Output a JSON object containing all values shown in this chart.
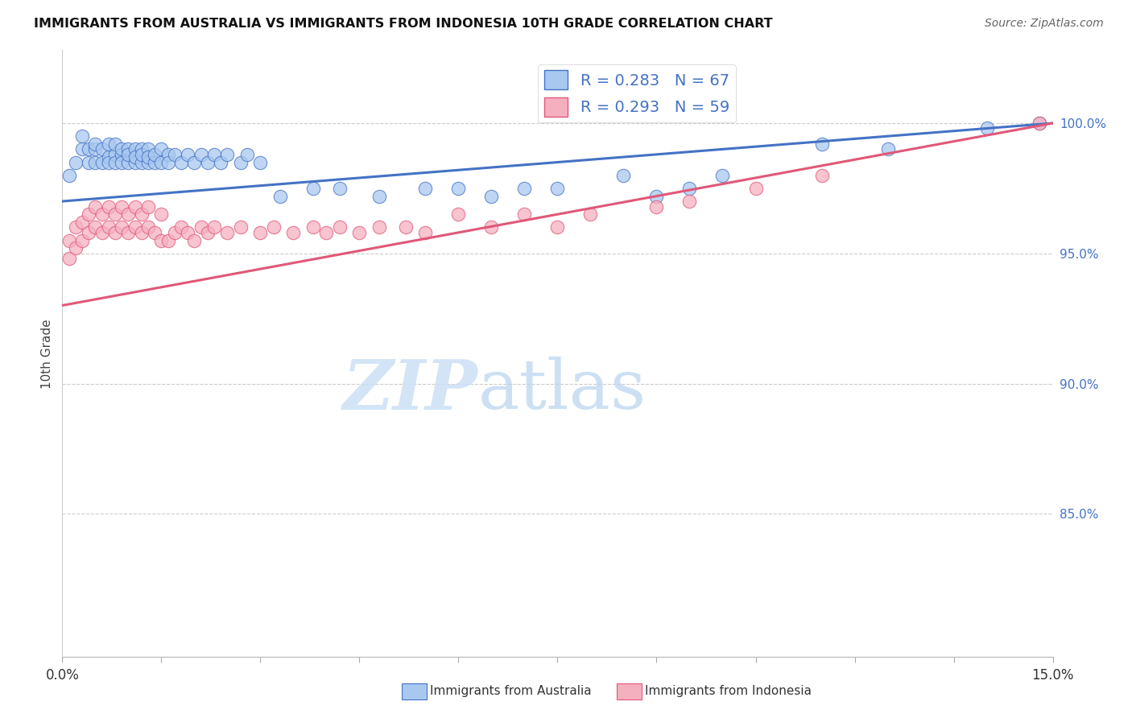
{
  "title": "IMMIGRANTS FROM AUSTRALIA VS IMMIGRANTS FROM INDONESIA 10TH GRADE CORRELATION CHART",
  "source": "Source: ZipAtlas.com",
  "ylabel": "10th Grade",
  "xmin": 0.0,
  "xmax": 0.15,
  "ymin": 0.795,
  "ymax": 1.028,
  "r_aus": 0.283,
  "n_aus": 67,
  "r_ind": 0.293,
  "n_ind": 59,
  "color_australia": "#a8c8f0",
  "color_indonesia": "#f5b0c0",
  "line_color_australia": "#4472c4",
  "line_color_indonesia": "#e05878",
  "watermark_text": "ZIPatlas",
  "legend_label_aus": "Immigrants from Australia",
  "legend_label_ind": "Immigrants from Indonesia",
  "yticks": [
    1.0,
    0.95,
    0.9,
    0.85
  ],
  "ytick_labels": [
    "100.0%",
    "95.0%",
    "90.0%",
    "85.0%"
  ],
  "aus_line_x0": 0.0,
  "aus_line_y0": 0.97,
  "aus_line_x1": 0.15,
  "aus_line_y1": 1.0,
  "ind_line_x0": 0.0,
  "ind_line_y0": 0.93,
  "ind_line_x1": 0.15,
  "ind_line_y1": 1.0,
  "australia_x": [
    0.001,
    0.002,
    0.003,
    0.003,
    0.004,
    0.004,
    0.005,
    0.005,
    0.005,
    0.006,
    0.006,
    0.007,
    0.007,
    0.007,
    0.008,
    0.008,
    0.008,
    0.009,
    0.009,
    0.009,
    0.01,
    0.01,
    0.01,
    0.011,
    0.011,
    0.011,
    0.012,
    0.012,
    0.012,
    0.013,
    0.013,
    0.013,
    0.014,
    0.014,
    0.015,
    0.015,
    0.016,
    0.016,
    0.017,
    0.018,
    0.019,
    0.02,
    0.021,
    0.022,
    0.023,
    0.024,
    0.025,
    0.027,
    0.028,
    0.03,
    0.033,
    0.038,
    0.042,
    0.048,
    0.055,
    0.06,
    0.065,
    0.07,
    0.075,
    0.085,
    0.09,
    0.095,
    0.1,
    0.115,
    0.125,
    0.14,
    0.148
  ],
  "australia_y": [
    0.98,
    0.985,
    0.99,
    0.995,
    0.985,
    0.99,
    0.99,
    0.992,
    0.985,
    0.985,
    0.99,
    0.987,
    0.992,
    0.985,
    0.988,
    0.992,
    0.985,
    0.988,
    0.99,
    0.985,
    0.985,
    0.99,
    0.988,
    0.985,
    0.99,
    0.987,
    0.985,
    0.99,
    0.988,
    0.985,
    0.99,
    0.987,
    0.985,
    0.988,
    0.985,
    0.99,
    0.988,
    0.985,
    0.988,
    0.985,
    0.988,
    0.985,
    0.988,
    0.985,
    0.988,
    0.985,
    0.988,
    0.985,
    0.988,
    0.985,
    0.972,
    0.975,
    0.975,
    0.972,
    0.975,
    0.975,
    0.972,
    0.975,
    0.975,
    0.98,
    0.972,
    0.975,
    0.98,
    0.992,
    0.99,
    0.998,
    1.0
  ],
  "indonesia_x": [
    0.001,
    0.001,
    0.002,
    0.002,
    0.003,
    0.003,
    0.004,
    0.004,
    0.005,
    0.005,
    0.006,
    0.006,
    0.007,
    0.007,
    0.008,
    0.008,
    0.009,
    0.009,
    0.01,
    0.01,
    0.011,
    0.011,
    0.012,
    0.012,
    0.013,
    0.013,
    0.014,
    0.015,
    0.015,
    0.016,
    0.017,
    0.018,
    0.019,
    0.02,
    0.021,
    0.022,
    0.023,
    0.025,
    0.027,
    0.03,
    0.032,
    0.035,
    0.038,
    0.04,
    0.042,
    0.045,
    0.048,
    0.052,
    0.055,
    0.06,
    0.065,
    0.07,
    0.075,
    0.08,
    0.09,
    0.095,
    0.105,
    0.115,
    0.148
  ],
  "indonesia_y": [
    0.948,
    0.955,
    0.952,
    0.96,
    0.955,
    0.962,
    0.958,
    0.965,
    0.96,
    0.968,
    0.958,
    0.965,
    0.96,
    0.968,
    0.958,
    0.965,
    0.96,
    0.968,
    0.958,
    0.965,
    0.96,
    0.968,
    0.958,
    0.965,
    0.96,
    0.968,
    0.958,
    0.955,
    0.965,
    0.955,
    0.958,
    0.96,
    0.958,
    0.955,
    0.96,
    0.958,
    0.96,
    0.958,
    0.96,
    0.958,
    0.96,
    0.958,
    0.96,
    0.958,
    0.96,
    0.958,
    0.96,
    0.96,
    0.958,
    0.965,
    0.96,
    0.965,
    0.96,
    0.965,
    0.968,
    0.97,
    0.975,
    0.98,
    1.0
  ]
}
